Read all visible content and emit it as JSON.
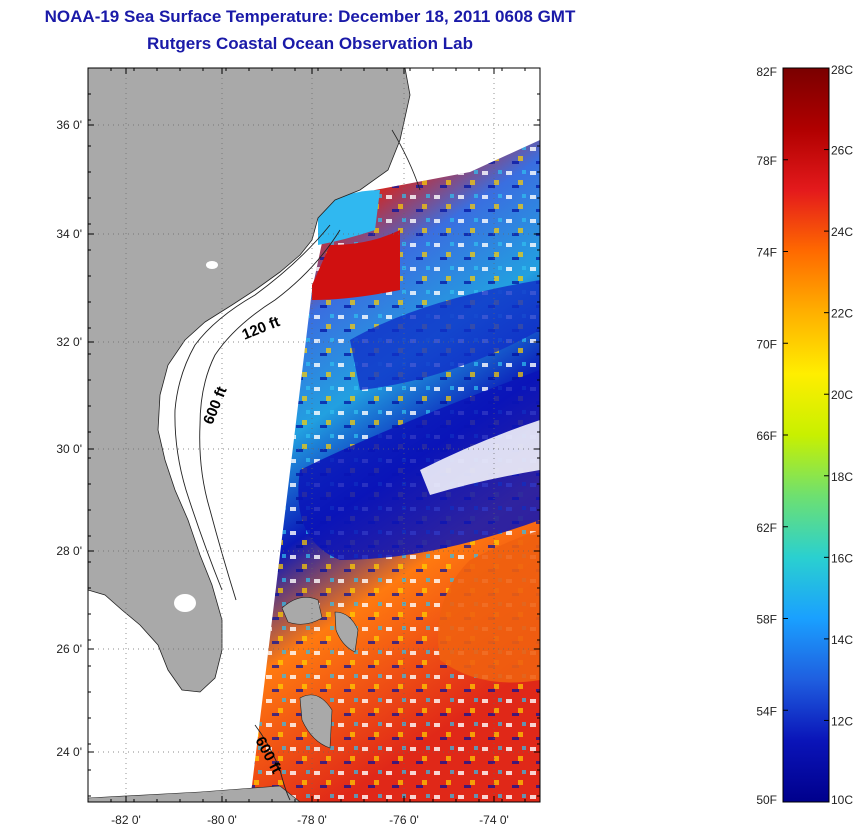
{
  "title": {
    "line1": "NOAA-19 Sea Surface Temperature:  December 18, 2011 0608 GMT",
    "line2": "Rutgers Coastal Ocean Observation Lab"
  },
  "map": {
    "lat_ticks": [
      "24 0'",
      "26 0'",
      "28 0'",
      "30 0'",
      "32 0'",
      "34 0'",
      "36 0'"
    ],
    "lon_ticks": [
      "-82 0'",
      "-80 0'",
      "-78 0'",
      "-76 0'",
      "-74 0'"
    ],
    "contours": [
      "120 ft",
      "600 ft",
      "600 ft"
    ],
    "colors": {
      "land": "#a9a9a9",
      "ocean_bg": "#ffffff"
    }
  },
  "colorbar": {
    "fahrenheit": [
      "82F",
      "78F",
      "74F",
      "70F",
      "66F",
      "62F",
      "58F",
      "54F",
      "50F"
    ],
    "celsius": [
      "28C",
      "26C",
      "24C",
      "22C",
      "20C",
      "18C",
      "16C",
      "14C",
      "12C",
      "10C"
    ],
    "colormap": [
      "#7a0000",
      "#b00000",
      "#e41a1c",
      "#ff6a00",
      "#ffb000",
      "#ffee00",
      "#c8f000",
      "#6ee070",
      "#2ad0d0",
      "#1aa0ff",
      "#1f5fe0",
      "#0a14b8",
      "#00008c"
    ]
  }
}
